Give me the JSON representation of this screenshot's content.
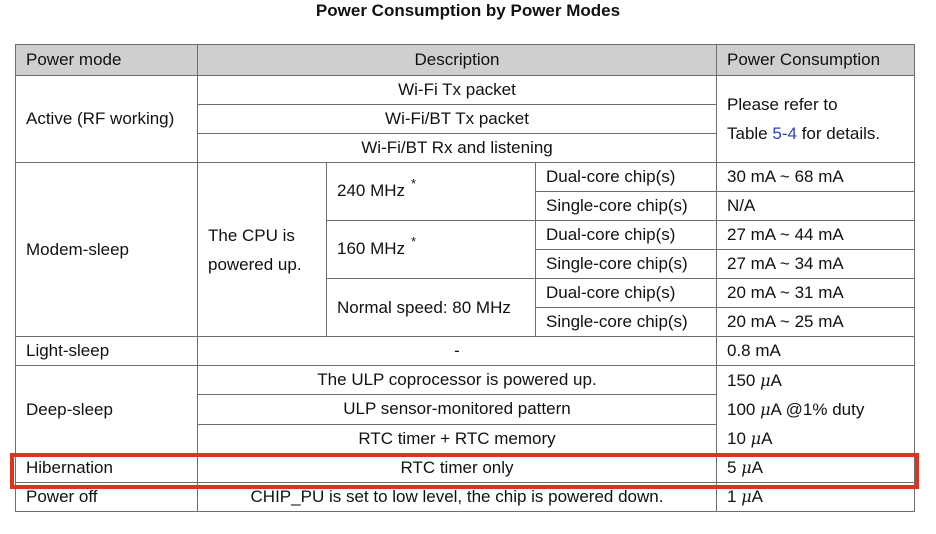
{
  "caption": "Power Consumption by Power Modes",
  "headers": {
    "mode": "Power mode",
    "description": "Description",
    "consumption": "Power Consumption"
  },
  "active": {
    "mode": "Active (RF working)",
    "rows": [
      "Wi-Fi Tx packet",
      "Wi-Fi/BT Tx packet",
      "Wi-Fi/BT Rx and listening"
    ],
    "consumption_pre": "Please refer to",
    "consumption_table": "Table",
    "consumption_link": "5-4",
    "consumption_post": "for details."
  },
  "modem": {
    "mode": "Modem-sleep",
    "cpu_line1": "The CPU is",
    "cpu_line2": "powered up.",
    "freq_240": "240 MHz",
    "freq_160": "160 MHz",
    "freq_80": "Normal speed: 80 MHz",
    "star": "*",
    "dual": "Dual-core chip(s)",
    "single": "Single-core chip(s)",
    "values": [
      "30 mA ~ 68 mA",
      "N/A",
      "27 mA ~ 44 mA",
      "27 mA ~ 34 mA",
      "20 mA ~ 31 mA",
      "20 mA ~ 25 mA"
    ]
  },
  "light": {
    "mode": "Light-sleep",
    "description": "-",
    "consumption": "0.8 mA"
  },
  "deep": {
    "mode": "Deep-sleep",
    "rows": [
      "The ULP coprocessor is powered up.",
      "ULP sensor-monitored pattern",
      "RTC timer + RTC memory"
    ],
    "values": [
      {
        "num": "150",
        "mu": "μ",
        "unit": "A",
        "extra": ""
      },
      {
        "num": "100",
        "mu": "μ",
        "unit": "A",
        "extra": "@1% duty"
      },
      {
        "num": "10",
        "mu": "μ",
        "unit": "A",
        "extra": ""
      }
    ]
  },
  "hibernation": {
    "mode": "Hibernation",
    "description": "RTC timer only",
    "num": "5",
    "mu": "μ",
    "unit": "A"
  },
  "poweroff": {
    "mode": "Power off",
    "description": "CHIP_PU is set to low level, the chip is powered down.",
    "num": "1",
    "mu": "μ",
    "unit": "A"
  },
  "colors": {
    "header_bg": "#cfcfcf",
    "highlight": "#e2311d",
    "link": "#2c3ec4"
  }
}
